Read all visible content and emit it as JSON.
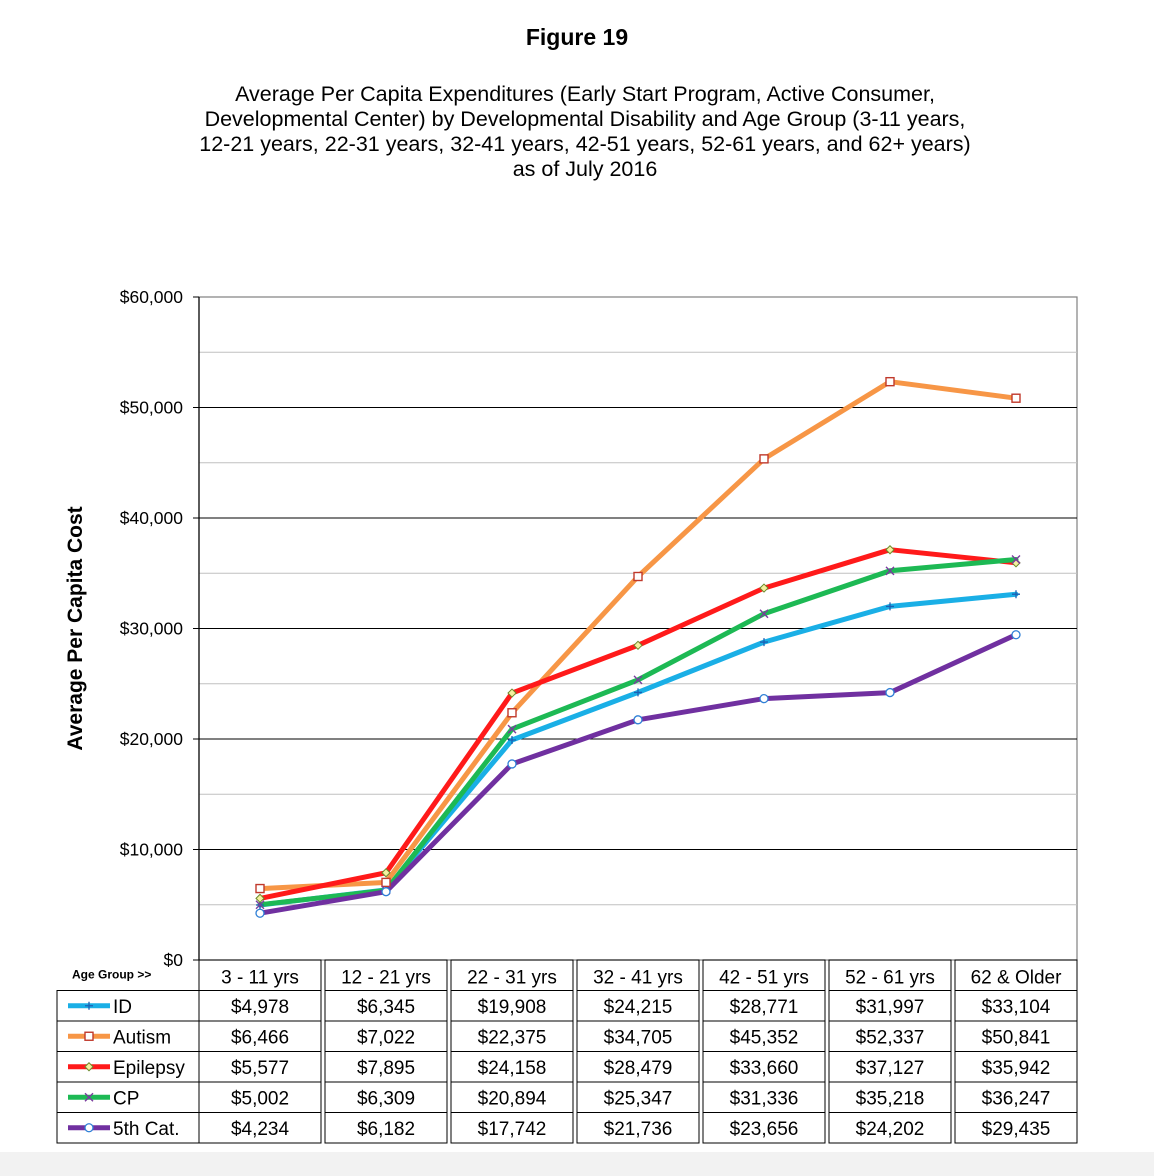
{
  "figure_label": "Figure 19",
  "subtitle_lines": [
    "Average Per Capita Expenditures (Early Start Program, Active Consumer,",
    "Developmental Center) by Developmental Disability and Age Group (3-11 years,",
    "12-21 years, 22-31 years, 32-41 years, 42-51 years, 52-61 years, and 62+ years)",
    "as of July 2016"
  ],
  "chart_data": {
    "type": "line",
    "ylabel": "Average Per Capita Cost",
    "ylim": [
      0,
      60000
    ],
    "yticks": [
      {
        "value": 0,
        "label": "$0"
      },
      {
        "value": 10000,
        "label": "$10,000"
      },
      {
        "value": 20000,
        "label": "$20,000"
      },
      {
        "value": 30000,
        "label": "$30,000"
      },
      {
        "value": 40000,
        "label": "$40,000"
      },
      {
        "value": 50000,
        "label": "$50,000"
      },
      {
        "value": 60000,
        "label": "$60,000"
      }
    ],
    "grid": true,
    "table_header": "Age Group >>",
    "categories": [
      "3 - 11 yrs",
      "12 - 21 yrs",
      "22 - 31 yrs",
      "32 - 41 yrs",
      "42 - 51 yrs",
      "52 - 61 yrs",
      "62 & Older"
    ],
    "series": [
      {
        "name": "ID",
        "color": "#1aafe6",
        "marker": "plus",
        "values": [
          4978,
          6345,
          19908,
          24215,
          28771,
          31997,
          33104
        ],
        "labels": [
          "$4,978",
          "$6,345",
          "$19,908",
          "$24,215",
          "$28,771",
          "$31,997",
          "$33,104"
        ]
      },
      {
        "name": "Autism",
        "color": "#f79646",
        "marker": "square",
        "values": [
          6466,
          7022,
          22375,
          34705,
          45352,
          52337,
          50841
        ],
        "labels": [
          "$6,466",
          "$7,022",
          "$22,375",
          "$34,705",
          "$45,352",
          "$52,337",
          "$50,841"
        ]
      },
      {
        "name": "Epilepsy",
        "color": "#ff1a1a",
        "marker": "diamond",
        "values": [
          5577,
          7895,
          24158,
          28479,
          33660,
          37127,
          35942
        ],
        "labels": [
          "$5,577",
          "$7,895",
          "$24,158",
          "$28,479",
          "$33,660",
          "$37,127",
          "$35,942"
        ]
      },
      {
        "name": "CP",
        "color": "#1db954",
        "marker": "x",
        "values": [
          5002,
          6309,
          20894,
          25347,
          31336,
          35218,
          36247
        ],
        "labels": [
          "$5,002",
          "$6,309",
          "$20,894",
          "$25,347",
          "$31,336",
          "$35,218",
          "$36,247"
        ]
      },
      {
        "name": "5th Cat.",
        "color": "#7030a0",
        "marker": "circle",
        "values": [
          4234,
          6182,
          17742,
          21736,
          23656,
          24202,
          29435
        ],
        "labels": [
          "$4,234",
          "$6,182",
          "$17,742",
          "$21,736",
          "$23,656",
          "$24,202",
          "$29,435"
        ]
      }
    ]
  }
}
